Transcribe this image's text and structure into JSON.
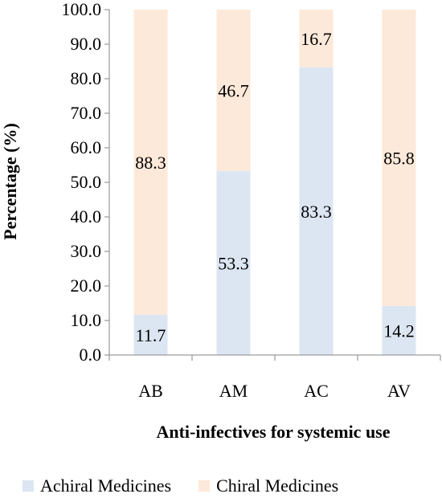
{
  "chart_data": {
    "type": "bar",
    "stacked": true,
    "categories": [
      "AB",
      "AM",
      "AC",
      "AV"
    ],
    "series": [
      {
        "name": "Achiral Medicines",
        "values": [
          11.7,
          53.3,
          83.3,
          14.2
        ],
        "color": "#dce6f2",
        "labels": [
          "11.7",
          "53.3",
          "83.3",
          "14.2"
        ]
      },
      {
        "name": "Chiral Medicines",
        "values": [
          88.3,
          46.7,
          16.7,
          85.8
        ],
        "color": "#fde9d9",
        "labels": [
          "88.3",
          "46.7",
          "16.7",
          "85.8"
        ]
      }
    ],
    "xlabel": "Anti-infectives for systemic use",
    "ylabel": "Percentage (%)",
    "ylim": [
      0,
      100
    ],
    "yticks": [
      "0.0",
      "10.0",
      "20.0",
      "30.0",
      "40.0",
      "50.0",
      "60.0",
      "70.0",
      "80.0",
      "90.0",
      "100.0"
    ],
    "grid": false,
    "legend_position": "bottom"
  }
}
